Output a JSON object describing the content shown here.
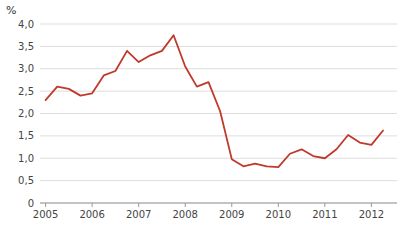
{
  "chart_data": {
    "type": "line",
    "ylabel": "%",
    "color": "#c0392b",
    "grid": true,
    "x": [
      2005.0,
      2005.25,
      2005.5,
      2005.75,
      2006.0,
      2006.25,
      2006.5,
      2006.75,
      2007.0,
      2007.25,
      2007.5,
      2007.75,
      2008.0,
      2008.25,
      2008.5,
      2008.75,
      2009.0,
      2009.25,
      2009.5,
      2009.75,
      2010.0,
      2010.25,
      2010.5,
      2010.75,
      2011.0,
      2011.25,
      2011.5,
      2011.75,
      2012.0,
      2012.25
    ],
    "values": [
      2.3,
      2.6,
      2.55,
      2.4,
      2.45,
      2.85,
      2.95,
      3.4,
      3.15,
      3.3,
      3.4,
      3.75,
      3.05,
      2.6,
      2.7,
      2.05,
      0.98,
      0.82,
      0.88,
      0.82,
      0.8,
      1.1,
      1.2,
      1.05,
      1.0,
      1.2,
      1.52,
      1.35,
      1.3,
      1.62
    ],
    "xlim": [
      2004.88,
      2012.55
    ],
    "xticks": [
      2005,
      2006,
      2007,
      2008,
      2009,
      2010,
      2011,
      2012
    ],
    "ylim": [
      0,
      4.0
    ],
    "yticks": [
      0,
      {
        "value": 0.5,
        "label": "0,5"
      },
      {
        "value": 1.0,
        "label": "1,0"
      },
      {
        "value": 1.5,
        "label": "1,5"
      },
      {
        "value": 2.0,
        "label": "2,0"
      },
      {
        "value": 2.5,
        "label": "2,5"
      },
      {
        "value": 3.0,
        "label": "3,0"
      },
      {
        "value": 3.5,
        "label": "3,5"
      },
      {
        "value": 4.0,
        "label": "4,0"
      }
    ]
  }
}
